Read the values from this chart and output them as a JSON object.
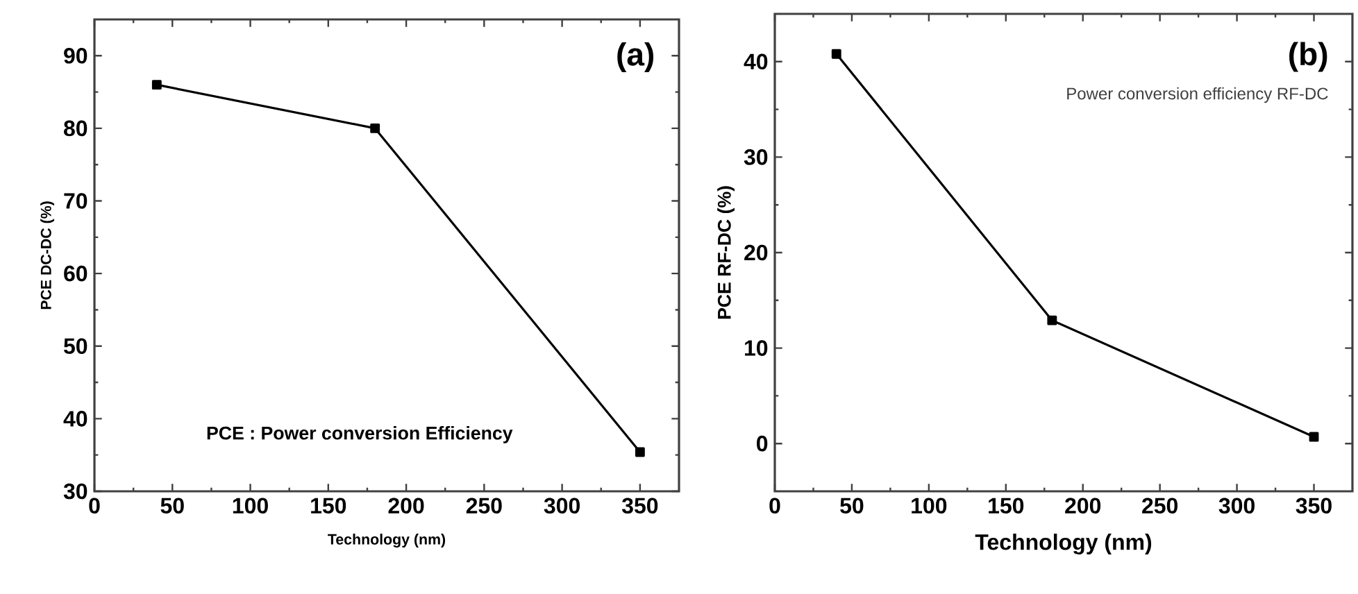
{
  "chart_data": [
    {
      "type": "line",
      "xlabel": "Technology (nm)",
      "ylabel": "PCE DC-DC (%)",
      "annotations": [
        "(a)",
        "PCE : Power conversion Efficiency"
      ],
      "x": [
        40,
        180,
        350
      ],
      "series": [
        {
          "color": "#000000",
          "values": [
            86,
            80,
            35.4
          ]
        }
      ],
      "xlim": [
        0,
        375
      ],
      "ylim": [
        30,
        95
      ],
      "xticks": [
        0,
        50,
        100,
        150,
        200,
        250,
        300,
        350
      ],
      "yticks": [
        30,
        40,
        50,
        60,
        70,
        80,
        90
      ],
      "marker": "square",
      "line_style": "solid"
    },
    {
      "type": "line",
      "xlabel": "Technology (nm)",
      "ylabel": "PCE RF-DC (%)",
      "annotations": [
        "(b)",
        "Power conversion efficiency RF-DC"
      ],
      "x": [
        40,
        180,
        350
      ],
      "series": [
        {
          "color": "#000000",
          "values": [
            40.8,
            12.9,
            0.7
          ]
        }
      ],
      "xlim": [
        0,
        375
      ],
      "ylim": [
        -5,
        45
      ],
      "xticks": [
        0,
        50,
        100,
        150,
        200,
        250,
        300,
        350
      ],
      "yticks": [
        0,
        10,
        20,
        30,
        40
      ],
      "marker": "square",
      "line_style": "solid"
    }
  ]
}
